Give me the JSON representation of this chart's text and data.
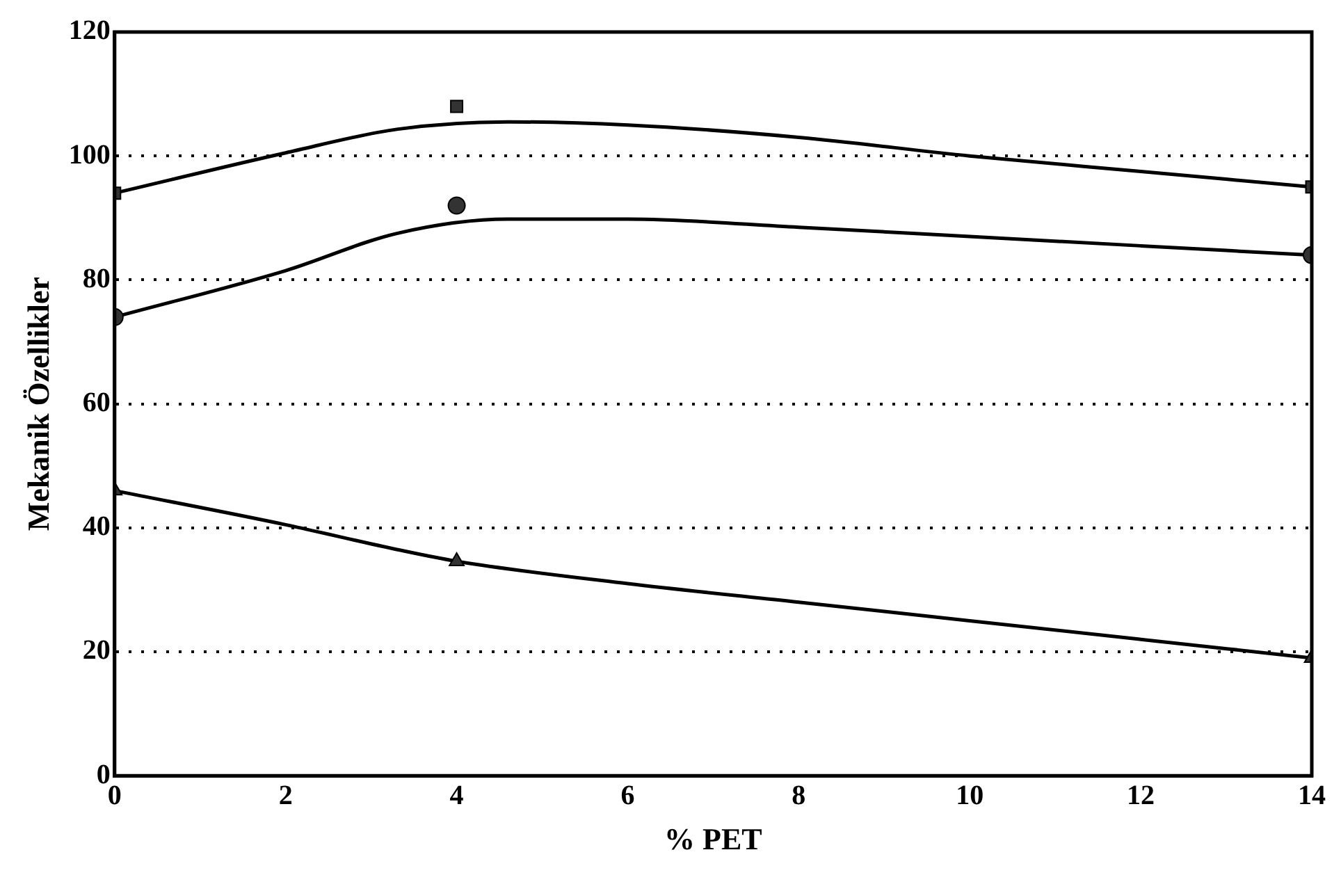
{
  "chart_data": {
    "type": "scatter",
    "xlabel": "% PET",
    "ylabel": "Mekanik Özellikler",
    "xlim": [
      0,
      14
    ],
    "xticks": [
      0,
      2,
      4,
      6,
      8,
      10,
      12,
      14
    ],
    "ylim": [
      0,
      120
    ],
    "yticks": [
      0,
      20,
      40,
      60,
      80,
      100,
      120
    ],
    "grid": "y",
    "legend": false,
    "series": [
      {
        "type": "scatter",
        "marker": "square",
        "color": "#333333",
        "x": [
          0,
          4,
          14
        ],
        "values": [
          94,
          108,
          95
        ]
      },
      {
        "type": "scatter",
        "marker": "circle",
        "color": "#333333",
        "x": [
          0,
          4,
          14
        ],
        "values": [
          74,
          92,
          84
        ]
      },
      {
        "type": "scatter",
        "marker": "triangle",
        "color": "#333333",
        "x": [
          0,
          4,
          14
        ],
        "values": [
          46,
          34.6,
          19
        ]
      },
      {
        "type": "line",
        "marker": "none",
        "color": "#000000",
        "x": [
          0,
          2,
          3.3,
          4.6,
          6,
          8,
          10,
          12,
          14
        ],
        "values": [
          94,
          100.5,
          104.3,
          105.5,
          105,
          103,
          100,
          97.5,
          95
        ]
      },
      {
        "type": "line",
        "marker": "none",
        "color": "#000000",
        "x": [
          0,
          2,
          3.3,
          4.6,
          6,
          8,
          10,
          12,
          14
        ],
        "values": [
          74,
          81.5,
          87.5,
          89.8,
          89.8,
          88.5,
          87,
          85.5,
          84
        ]
      },
      {
        "type": "line",
        "marker": "none",
        "color": "#000000",
        "x": [
          0,
          2,
          3.3,
          4,
          6,
          8,
          10,
          12,
          14
        ],
        "values": [
          46,
          40.5,
          36.5,
          34.6,
          31,
          28,
          25,
          22,
          19
        ]
      }
    ]
  }
}
